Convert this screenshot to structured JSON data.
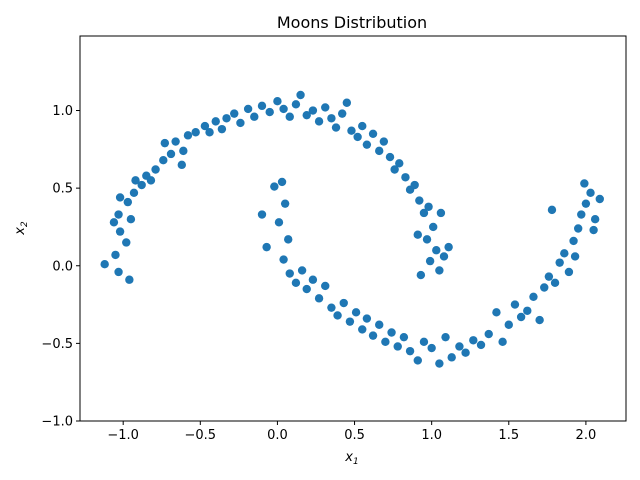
{
  "chart_data": {
    "type": "scatter",
    "title": "Moons Distribution",
    "xlabel": "x",
    "xlabel_sub": "1",
    "ylabel": "x",
    "ylabel_sub": "2",
    "xlim": [
      -1.28,
      2.26
    ],
    "ylim": [
      -1.0,
      1.48
    ],
    "xticks": [
      -1.0,
      -0.5,
      0.0,
      0.5,
      1.0,
      1.5,
      2.0
    ],
    "xtick_labels": [
      "−1.0",
      "−0.5",
      "0.0",
      "0.5",
      "1.0",
      "1.5",
      "2.0"
    ],
    "yticks": [
      -1.0,
      -0.5,
      0.0,
      0.5,
      1.0
    ],
    "ytick_labels": [
      "−1.0",
      "−0.5",
      "0.0",
      "0.5",
      "1.0"
    ],
    "grid": false,
    "marker_color": "#1f77b4",
    "series": [
      {
        "points": [
          [
            -1.12,
            0.01
          ],
          [
            -0.96,
            -0.09
          ],
          [
            -1.03,
            -0.04
          ],
          [
            -1.05,
            0.07
          ],
          [
            -0.98,
            0.15
          ],
          [
            -1.02,
            0.22
          ],
          [
            -0.95,
            0.3
          ],
          [
            -1.03,
            0.33
          ],
          [
            -1.06,
            0.28
          ],
          [
            -0.97,
            0.41
          ],
          [
            -1.02,
            0.44
          ],
          [
            -0.93,
            0.47
          ],
          [
            -0.88,
            0.52
          ],
          [
            -0.92,
            0.55
          ],
          [
            -0.85,
            0.58
          ],
          [
            -0.79,
            0.62
          ],
          [
            -0.82,
            0.55
          ],
          [
            -0.74,
            0.68
          ],
          [
            -0.69,
            0.72
          ],
          [
            -0.73,
            0.79
          ],
          [
            -0.66,
            0.8
          ],
          [
            -0.61,
            0.74
          ],
          [
            -0.58,
            0.84
          ],
          [
            -0.62,
            0.65
          ],
          [
            -0.53,
            0.86
          ],
          [
            -0.47,
            0.9
          ],
          [
            -0.44,
            0.86
          ],
          [
            -0.4,
            0.93
          ],
          [
            -0.36,
            0.88
          ],
          [
            -0.33,
            0.95
          ],
          [
            -0.28,
            0.98
          ],
          [
            -0.24,
            0.92
          ],
          [
            -0.19,
            1.01
          ],
          [
            -0.15,
            0.96
          ],
          [
            -0.1,
            1.03
          ],
          [
            -0.05,
            0.99
          ],
          [
            0.0,
            1.06
          ],
          [
            0.04,
            1.01
          ],
          [
            0.08,
            0.96
          ],
          [
            0.12,
            1.04
          ],
          [
            0.15,
            1.1
          ],
          [
            0.19,
            0.97
          ],
          [
            0.23,
            1.0
          ],
          [
            0.27,
            0.93
          ],
          [
            0.31,
            1.02
          ],
          [
            0.35,
            0.95
          ],
          [
            0.38,
            0.89
          ],
          [
            0.42,
            0.98
          ],
          [
            0.45,
            1.05
          ],
          [
            0.48,
            0.87
          ],
          [
            0.52,
            0.83
          ],
          [
            0.55,
            0.9
          ],
          [
            0.58,
            0.78
          ],
          [
            0.62,
            0.85
          ],
          [
            0.66,
            0.74
          ],
          [
            0.69,
            0.8
          ],
          [
            0.73,
            0.7
          ],
          [
            0.76,
            0.62
          ],
          [
            0.79,
            0.66
          ],
          [
            0.83,
            0.57
          ],
          [
            0.86,
            0.49
          ],
          [
            0.89,
            0.52
          ],
          [
            0.92,
            0.42
          ],
          [
            0.95,
            0.34
          ],
          [
            0.98,
            0.38
          ],
          [
            1.01,
            0.25
          ],
          [
            0.97,
            0.17
          ],
          [
            1.03,
            0.1
          ],
          [
            0.99,
            0.03
          ],
          [
            1.05,
            -0.03
          ],
          [
            1.08,
            0.06
          ],
          [
            1.11,
            0.12
          ],
          [
            0.93,
            -0.06
          ],
          [
            0.91,
            0.2
          ],
          [
            1.06,
            0.34
          ],
          [
            -0.1,
            0.33
          ],
          [
            -0.07,
            0.12
          ],
          [
            -0.02,
            0.51
          ],
          [
            0.03,
            0.54
          ],
          [
            0.05,
            0.4
          ],
          [
            0.01,
            0.28
          ],
          [
            0.07,
            0.17
          ],
          [
            0.04,
            0.04
          ],
          [
            0.08,
            -0.05
          ],
          [
            0.12,
            -0.11
          ],
          [
            0.16,
            -0.03
          ],
          [
            0.19,
            -0.15
          ],
          [
            0.23,
            -0.09
          ],
          [
            0.27,
            -0.21
          ],
          [
            0.31,
            -0.13
          ],
          [
            0.35,
            -0.27
          ],
          [
            0.39,
            -0.32
          ],
          [
            0.43,
            -0.24
          ],
          [
            0.47,
            -0.36
          ],
          [
            0.51,
            -0.3
          ],
          [
            0.55,
            -0.41
          ],
          [
            0.58,
            -0.34
          ],
          [
            0.62,
            -0.45
          ],
          [
            0.66,
            -0.38
          ],
          [
            0.7,
            -0.49
          ],
          [
            0.74,
            -0.43
          ],
          [
            0.78,
            -0.52
          ],
          [
            0.82,
            -0.46
          ],
          [
            0.86,
            -0.55
          ],
          [
            0.91,
            -0.61
          ],
          [
            0.95,
            -0.49
          ],
          [
            1.0,
            -0.53
          ],
          [
            1.05,
            -0.63
          ],
          [
            1.09,
            -0.46
          ],
          [
            1.13,
            -0.59
          ],
          [
            1.18,
            -0.52
          ],
          [
            1.22,
            -0.56
          ],
          [
            1.27,
            -0.48
          ],
          [
            1.32,
            -0.51
          ],
          [
            1.37,
            -0.44
          ],
          [
            1.42,
            -0.3
          ],
          [
            1.46,
            -0.49
          ],
          [
            1.5,
            -0.38
          ],
          [
            1.54,
            -0.25
          ],
          [
            1.58,
            -0.33
          ],
          [
            1.62,
            -0.29
          ],
          [
            1.66,
            -0.2
          ],
          [
            1.7,
            -0.35
          ],
          [
            1.73,
            -0.14
          ],
          [
            1.76,
            -0.07
          ],
          [
            1.8,
            -0.11
          ],
          [
            1.83,
            0.02
          ],
          [
            1.86,
            0.08
          ],
          [
            1.89,
            -0.04
          ],
          [
            1.92,
            0.16
          ],
          [
            1.95,
            0.24
          ],
          [
            1.78,
            0.36
          ],
          [
            1.97,
            0.33
          ],
          [
            2.0,
            0.4
          ],
          [
            2.03,
            0.47
          ],
          [
            1.99,
            0.53
          ],
          [
            2.06,
            0.3
          ],
          [
            2.09,
            0.43
          ],
          [
            2.05,
            0.23
          ],
          [
            1.93,
            0.06
          ]
        ]
      }
    ]
  }
}
